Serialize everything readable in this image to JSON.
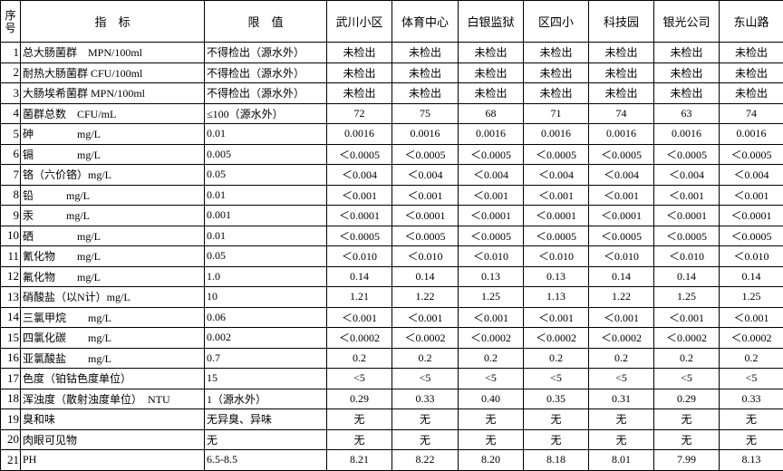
{
  "table": {
    "header": [
      "序号",
      "指　标",
      "限　值",
      "武川小区",
      "体育中心",
      "白银监狱",
      "区四小",
      "科技园",
      "银光公司",
      "东山路"
    ],
    "rows": [
      [
        "1",
        "总大肠菌群　MPN/100ml",
        "不得检出（源水外）",
        "未检出",
        "未检出",
        "未检出",
        "未检出",
        "未检出",
        "未检出",
        "未检出"
      ],
      [
        "2",
        "耐热大肠菌群 CFU/100ml",
        "不得检出（源水外）",
        "未检出",
        "未检出",
        "未检出",
        "未检出",
        "未检出",
        "未检出",
        "未检出"
      ],
      [
        "3",
        "大肠埃希菌群 MPN/100ml",
        "不得检出（源水外）",
        "未检出",
        "未检出",
        "未检出",
        "未检出",
        "未检出",
        "未检出",
        "未检出"
      ],
      [
        "4",
        "菌群总数　CFU/mL",
        "≤100（源水外）",
        "72",
        "75",
        "68",
        "71",
        "74",
        "63",
        "74"
      ],
      [
        "5",
        "砷　　　　mg/L",
        "0.01",
        "0.0016",
        "0.0016",
        "0.0016",
        "0.0016",
        "0.0016",
        "0.0016",
        "0.0016"
      ],
      [
        "6",
        "镉　　　　mg/L",
        "0.005",
        "＜0.0005",
        "＜0.0005",
        "＜0.0005",
        "＜0.0005",
        "＜0.0005",
        "＜0.0005",
        "＜0.0005"
      ],
      [
        "7",
        "铬（六价铬）mg/L",
        "0.05",
        "＜0.004",
        "＜0.004",
        "＜0.004",
        "＜0.004",
        "＜0.004",
        "＜0.004",
        "＜0.004"
      ],
      [
        "8",
        "铅　　　mg/L",
        "0.01",
        "＜0.001",
        "＜0.001",
        "＜0.001",
        "＜0.001",
        "＜0.001",
        "＜0.001",
        "＜0.001"
      ],
      [
        "9",
        "汞　　　mg/L",
        "0.001",
        "＜0.0001",
        "＜0.0001",
        "＜0.0001",
        "＜0.0001",
        "＜0.0001",
        "＜0.0001",
        "＜0.0001"
      ],
      [
        "10",
        "硒　　　　mg/L",
        "0.01",
        "＜0.0005",
        "＜0.0005",
        "＜0.0005",
        "＜0.0005",
        "＜0.0005",
        "＜0.0005",
        "＜0.0005"
      ],
      [
        "11",
        "氰化物　　mg/L",
        "0.05",
        "＜0.010",
        "＜0.010",
        "＜0.010",
        "＜0.010",
        "＜0.010",
        "＜0.010",
        "＜0.010"
      ],
      [
        "12",
        "氟化物　　mg/L",
        "1.0",
        "0.14",
        "0.14",
        "0.13",
        "0.13",
        "0.14",
        "0.14",
        "0.14"
      ],
      [
        "13",
        "硝酸盐（以N计）mg/L",
        "10",
        "1.21",
        "1.22",
        "1.25",
        "1.13",
        "1.22",
        "1.25",
        "1.25"
      ],
      [
        "14",
        "三氯甲烷　　mg/L",
        "0.06",
        "＜0.001",
        "＜0.001",
        "＜0.001",
        "＜0.001",
        "＜0.001",
        "＜0.001",
        "＜0.001"
      ],
      [
        "15",
        "四氯化碳　　mg/L",
        "0.002",
        "＜0.0002",
        "＜0.0002",
        "＜0.0002",
        "＜0.0002",
        "＜0.0002",
        "＜0.0002",
        "＜0.0002"
      ],
      [
        "16",
        "亚氯酸盐　　mg/L",
        "0.7",
        "0.2",
        "0.2",
        "0.2",
        "0.2",
        "0.2",
        "0.2",
        "0.2"
      ],
      [
        "17",
        "色度（铂钴色度单位）",
        "15",
        "<5",
        "<5",
        "<5",
        "<5",
        "<5",
        "<5",
        "<5"
      ],
      [
        "18",
        "浑浊度（散射浊度单位）　NTU",
        "1（源水外）",
        "0.29",
        "0.33",
        "0.40",
        "0.35",
        "0.31",
        "0.29",
        "0.33"
      ],
      [
        "19",
        "臭和味",
        "无异臭、异味",
        "无",
        "无",
        "无",
        "无",
        "无",
        "无",
        "无"
      ],
      [
        "20",
        "肉眼可见物",
        "无",
        "无",
        "无",
        "无",
        "无",
        "无",
        "无",
        "无"
      ],
      [
        "21",
        "PH",
        "6.5-8.5",
        "8.21",
        "8.22",
        "8.20",
        "8.18",
        "8.01",
        "7.99",
        "8.13"
      ]
    ]
  }
}
